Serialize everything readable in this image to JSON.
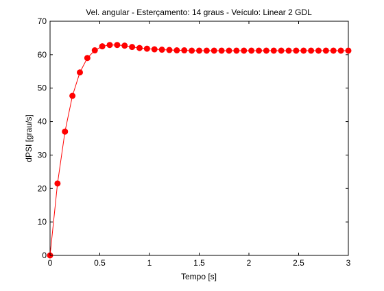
{
  "chart_data": {
    "type": "line",
    "title": "Vel. angular - Esterçamento: 14 graus - Veículo: Linear 2 GDL",
    "xlabel": "Tempo [s]",
    "ylabel": "dPSI [grau/s]",
    "xlim": [
      0,
      3
    ],
    "ylim": [
      0,
      70
    ],
    "xticks": [
      0,
      0.5,
      1,
      1.5,
      2,
      2.5,
      3
    ],
    "xtick_labels": [
      "0",
      "0.5",
      "1",
      "1.5",
      "2",
      "2.5",
      "3"
    ],
    "yticks": [
      0,
      10,
      20,
      30,
      40,
      50,
      60,
      70
    ],
    "ytick_labels": [
      "0",
      "10",
      "20",
      "30",
      "40",
      "50",
      "60",
      "70"
    ],
    "grid": false,
    "legend": "none",
    "series": [
      {
        "color": "#ff0000",
        "marker": "circle",
        "x": [
          0,
          0.075,
          0.15,
          0.225,
          0.3,
          0.375,
          0.45,
          0.525,
          0.6,
          0.675,
          0.75,
          0.825,
          0.9,
          0.975,
          1.05,
          1.125,
          1.2,
          1.275,
          1.35,
          1.425,
          1.5,
          1.575,
          1.65,
          1.725,
          1.8,
          1.875,
          1.95,
          2.025,
          2.1,
          2.175,
          2.25,
          2.325,
          2.4,
          2.475,
          2.55,
          2.625,
          2.7,
          2.775,
          2.85,
          2.925,
          3.0
        ],
        "y": [
          0,
          21.5,
          37.0,
          47.7,
          54.7,
          59.0,
          61.3,
          62.5,
          62.9,
          62.9,
          62.7,
          62.3,
          62.0,
          61.8,
          61.6,
          61.5,
          61.4,
          61.3,
          61.3,
          61.2,
          61.2,
          61.2,
          61.2,
          61.2,
          61.2,
          61.2,
          61.2,
          61.2,
          61.2,
          61.2,
          61.2,
          61.2,
          61.2,
          61.2,
          61.2,
          61.2,
          61.2,
          61.2,
          61.2,
          61.2,
          61.2
        ]
      }
    ]
  }
}
